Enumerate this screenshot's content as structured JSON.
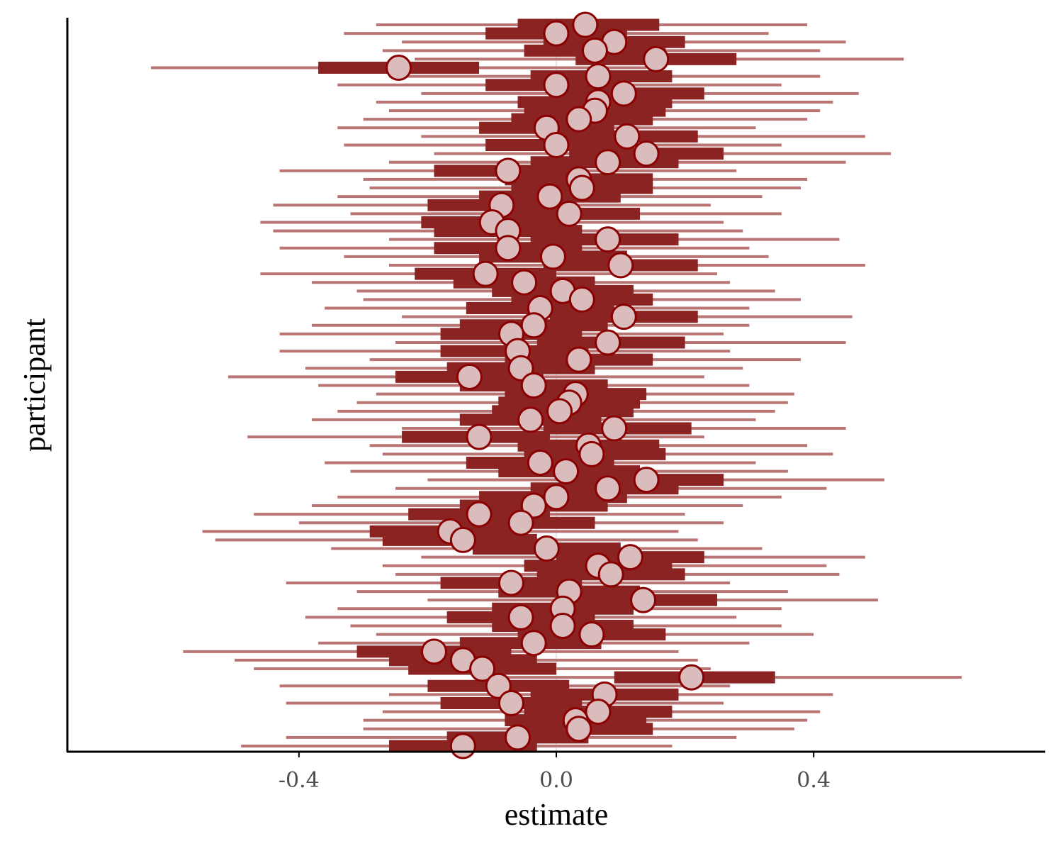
{
  "chart_data": {
    "type": "forest",
    "xlabel": "estimate",
    "ylabel": "participant",
    "xlim": [
      -0.76,
      0.76
    ],
    "xticks": [
      -0.4,
      0.0,
      0.4
    ],
    "xtick_labels": [
      "-0.4",
      "0.0",
      "0.4"
    ],
    "reference_line": 0,
    "grid": false,
    "colors": {
      "interval_inner": "#8b2323",
      "interval_outer": "#b97474",
      "point_fill": "#dbbcbc",
      "point_stroke": "#8b0000",
      "axis": "#000000",
      "reference_line": "#e6e6e6"
    },
    "rows": [
      {
        "est": 0.045,
        "lo50": -0.06,
        "hi50": 0.16,
        "lo95": -0.28,
        "hi95": 0.39
      },
      {
        "est": 0.0,
        "lo50": -0.11,
        "hi50": 0.11,
        "lo95": -0.33,
        "hi95": 0.33
      },
      {
        "est": 0.09,
        "lo50": -0.02,
        "hi50": 0.2,
        "lo95": -0.24,
        "hi95": 0.45
      },
      {
        "est": 0.06,
        "lo50": -0.05,
        "hi50": 0.17,
        "lo95": -0.27,
        "hi95": 0.41
      },
      {
        "est": 0.155,
        "lo50": 0.03,
        "hi50": 0.28,
        "lo95": -0.22,
        "hi95": 0.54
      },
      {
        "est": -0.245,
        "lo50": -0.37,
        "hi50": -0.12,
        "lo95": -0.63,
        "hi95": 0.14
      },
      {
        "est": 0.065,
        "lo50": -0.04,
        "hi50": 0.18,
        "lo95": -0.26,
        "hi95": 0.41
      },
      {
        "est": 0.0,
        "lo50": -0.11,
        "hi50": 0.11,
        "lo95": -0.34,
        "hi95": 0.35
      },
      {
        "est": 0.105,
        "lo50": -0.01,
        "hi50": 0.23,
        "lo95": -0.21,
        "hi95": 0.47
      },
      {
        "est": 0.065,
        "lo50": -0.06,
        "hi50": 0.18,
        "lo95": -0.28,
        "hi95": 0.43
      },
      {
        "est": 0.06,
        "lo50": -0.05,
        "hi50": 0.17,
        "lo95": -0.26,
        "hi95": 0.41
      },
      {
        "est": 0.035,
        "lo50": -0.07,
        "hi50": 0.15,
        "lo95": -0.3,
        "hi95": 0.39
      },
      {
        "est": -0.015,
        "lo50": -0.12,
        "hi50": 0.09,
        "lo95": -0.34,
        "hi95": 0.31
      },
      {
        "est": 0.11,
        "lo50": 0.0,
        "hi50": 0.22,
        "lo95": -0.21,
        "hi95": 0.48
      },
      {
        "est": 0.0,
        "lo50": -0.11,
        "hi50": 0.11,
        "lo95": -0.33,
        "hi95": 0.35
      },
      {
        "est": 0.14,
        "lo50": 0.02,
        "hi50": 0.26,
        "lo95": -0.19,
        "hi95": 0.52
      },
      {
        "est": 0.08,
        "lo50": -0.04,
        "hi50": 0.19,
        "lo95": -0.26,
        "hi95": 0.45
      },
      {
        "est": -0.075,
        "lo50": -0.19,
        "hi50": 0.04,
        "lo95": -0.43,
        "hi95": 0.28
      },
      {
        "est": 0.035,
        "lo50": -0.08,
        "hi50": 0.15,
        "lo95": -0.3,
        "hi95": 0.39
      },
      {
        "est": 0.04,
        "lo50": -0.07,
        "hi50": 0.15,
        "lo95": -0.29,
        "hi95": 0.38
      },
      {
        "est": -0.01,
        "lo50": -0.12,
        "hi50": 0.1,
        "lo95": -0.34,
        "hi95": 0.32
      },
      {
        "est": -0.085,
        "lo50": -0.2,
        "hi50": 0.03,
        "lo95": -0.44,
        "hi95": 0.24
      },
      {
        "est": 0.02,
        "lo50": -0.1,
        "hi50": 0.13,
        "lo95": -0.32,
        "hi95": 0.35
      },
      {
        "est": -0.1,
        "lo50": -0.21,
        "hi50": 0.02,
        "lo95": -0.46,
        "hi95": 0.26
      },
      {
        "est": -0.075,
        "lo50": -0.19,
        "hi50": 0.04,
        "lo95": -0.44,
        "hi95": 0.29
      },
      {
        "est": 0.08,
        "lo50": -0.04,
        "hi50": 0.19,
        "lo95": -0.26,
        "hi95": 0.44
      },
      {
        "est": -0.075,
        "lo50": -0.19,
        "hi50": 0.04,
        "lo95": -0.43,
        "hi95": 0.3
      },
      {
        "est": -0.005,
        "lo50": -0.12,
        "hi50": 0.11,
        "lo95": -0.33,
        "hi95": 0.33
      },
      {
        "est": 0.1,
        "lo50": -0.02,
        "hi50": 0.22,
        "lo95": -0.26,
        "hi95": 0.48
      },
      {
        "est": -0.11,
        "lo50": -0.22,
        "hi50": 0.0,
        "lo95": -0.46,
        "hi95": 0.25
      },
      {
        "est": -0.05,
        "lo50": -0.16,
        "hi50": 0.06,
        "lo95": -0.38,
        "hi95": 0.27
      },
      {
        "est": 0.01,
        "lo50": -0.1,
        "hi50": 0.12,
        "lo95": -0.31,
        "hi95": 0.34
      },
      {
        "est": 0.04,
        "lo50": -0.07,
        "hi50": 0.15,
        "lo95": -0.3,
        "hi95": 0.38
      },
      {
        "est": -0.025,
        "lo50": -0.14,
        "hi50": 0.09,
        "lo95": -0.36,
        "hi95": 0.3
      },
      {
        "est": 0.105,
        "lo50": -0.01,
        "hi50": 0.22,
        "lo95": -0.24,
        "hi95": 0.46
      },
      {
        "est": -0.035,
        "lo50": -0.15,
        "hi50": 0.08,
        "lo95": -0.38,
        "hi95": 0.3
      },
      {
        "est": -0.07,
        "lo50": -0.18,
        "hi50": 0.04,
        "lo95": -0.43,
        "hi95": 0.26
      },
      {
        "est": 0.08,
        "lo50": -0.03,
        "hi50": 0.2,
        "lo95": -0.25,
        "hi95": 0.45
      },
      {
        "est": -0.06,
        "lo50": -0.18,
        "hi50": 0.05,
        "lo95": -0.43,
        "hi95": 0.27
      },
      {
        "est": 0.035,
        "lo50": -0.08,
        "hi50": 0.15,
        "lo95": -0.29,
        "hi95": 0.38
      },
      {
        "est": -0.055,
        "lo50": -0.17,
        "hi50": 0.06,
        "lo95": -0.39,
        "hi95": 0.29
      },
      {
        "est": -0.135,
        "lo50": -0.25,
        "hi50": -0.02,
        "lo95": -0.51,
        "hi95": 0.23
      },
      {
        "est": -0.035,
        "lo50": -0.15,
        "hi50": 0.08,
        "lo95": -0.37,
        "hi95": 0.3
      },
      {
        "est": 0.03,
        "lo50": -0.08,
        "hi50": 0.14,
        "lo95": -0.28,
        "hi95": 0.37
      },
      {
        "est": 0.02,
        "lo50": -0.09,
        "hi50": 0.13,
        "lo95": -0.31,
        "hi95": 0.36
      },
      {
        "est": 0.005,
        "lo50": -0.1,
        "hi50": 0.12,
        "lo95": -0.34,
        "hi95": 0.34
      },
      {
        "est": -0.04,
        "lo50": -0.15,
        "hi50": 0.07,
        "lo95": -0.38,
        "hi95": 0.31
      },
      {
        "est": 0.09,
        "lo50": -0.02,
        "hi50": 0.21,
        "lo95": -0.24,
        "hi95": 0.45
      },
      {
        "est": -0.12,
        "lo50": -0.24,
        "hi50": -0.01,
        "lo95": -0.48,
        "hi95": 0.23
      },
      {
        "est": 0.05,
        "lo50": -0.06,
        "hi50": 0.16,
        "lo95": -0.29,
        "hi95": 0.39
      },
      {
        "est": 0.055,
        "lo50": -0.05,
        "hi50": 0.17,
        "lo95": -0.27,
        "hi95": 0.43
      },
      {
        "est": -0.025,
        "lo50": -0.14,
        "hi50": 0.09,
        "lo95": -0.36,
        "hi95": 0.31
      },
      {
        "est": 0.015,
        "lo50": -0.09,
        "hi50": 0.13,
        "lo95": -0.32,
        "hi95": 0.36
      },
      {
        "est": 0.14,
        "lo50": 0.02,
        "hi50": 0.26,
        "lo95": -0.2,
        "hi95": 0.51
      },
      {
        "est": 0.08,
        "lo50": -0.04,
        "hi50": 0.19,
        "lo95": -0.25,
        "hi95": 0.42
      },
      {
        "est": 0.0,
        "lo50": -0.12,
        "hi50": 0.11,
        "lo95": -0.34,
        "hi95": 0.35
      },
      {
        "est": -0.035,
        "lo50": -0.15,
        "hi50": 0.08,
        "lo95": -0.38,
        "hi95": 0.29
      },
      {
        "est": -0.12,
        "lo50": -0.23,
        "hi50": -0.01,
        "lo95": -0.47,
        "hi95": 0.2
      },
      {
        "est": -0.055,
        "lo50": -0.17,
        "hi50": 0.06,
        "lo95": -0.4,
        "hi95": 0.26
      },
      {
        "est": -0.165,
        "lo50": -0.29,
        "hi50": -0.05,
        "lo95": -0.55,
        "hi95": 0.19
      },
      {
        "est": -0.145,
        "lo50": -0.27,
        "hi50": -0.03,
        "lo95": -0.53,
        "hi95": 0.22
      },
      {
        "est": -0.015,
        "lo50": -0.13,
        "hi50": 0.1,
        "lo95": -0.35,
        "hi95": 0.32
      },
      {
        "est": 0.115,
        "lo50": 0.0,
        "hi50": 0.23,
        "lo95": -0.21,
        "hi95": 0.48
      },
      {
        "est": 0.065,
        "lo50": -0.05,
        "hi50": 0.18,
        "lo95": -0.27,
        "hi95": 0.42
      },
      {
        "est": 0.085,
        "lo50": -0.03,
        "hi50": 0.2,
        "lo95": -0.25,
        "hi95": 0.44
      },
      {
        "est": -0.07,
        "lo50": -0.18,
        "hi50": 0.04,
        "lo95": -0.42,
        "hi95": 0.27
      },
      {
        "est": 0.02,
        "lo50": -0.09,
        "hi50": 0.13,
        "lo95": -0.31,
        "hi95": 0.36
      },
      {
        "est": 0.135,
        "lo50": 0.02,
        "hi50": 0.25,
        "lo95": -0.2,
        "hi95": 0.5
      },
      {
        "est": 0.01,
        "lo50": -0.1,
        "hi50": 0.12,
        "lo95": -0.34,
        "hi95": 0.35
      },
      {
        "est": -0.055,
        "lo50": -0.17,
        "hi50": 0.06,
        "lo95": -0.39,
        "hi95": 0.28
      },
      {
        "est": 0.01,
        "lo50": -0.1,
        "hi50": 0.12,
        "lo95": -0.32,
        "hi95": 0.35
      },
      {
        "est": 0.055,
        "lo50": -0.06,
        "hi50": 0.17,
        "lo95": -0.28,
        "hi95": 0.4
      },
      {
        "est": -0.035,
        "lo50": -0.15,
        "hi50": 0.07,
        "lo95": -0.37,
        "hi95": 0.3
      },
      {
        "est": -0.19,
        "lo50": -0.31,
        "hi50": -0.07,
        "lo95": -0.58,
        "hi95": 0.19
      },
      {
        "est": -0.145,
        "lo50": -0.26,
        "hi50": -0.03,
        "lo95": -0.5,
        "hi95": 0.22
      },
      {
        "est": -0.115,
        "lo50": -0.23,
        "hi50": 0.0,
        "lo95": -0.47,
        "hi95": 0.24
      },
      {
        "est": 0.21,
        "lo50": 0.09,
        "hi50": 0.34,
        "lo95": -0.11,
        "hi95": 0.63
      },
      {
        "est": -0.09,
        "lo50": -0.2,
        "hi50": 0.02,
        "lo95": -0.43,
        "hi95": 0.27
      },
      {
        "est": 0.075,
        "lo50": -0.04,
        "hi50": 0.19,
        "lo95": -0.26,
        "hi95": 0.43
      },
      {
        "est": -0.07,
        "lo50": -0.18,
        "hi50": 0.04,
        "lo95": -0.42,
        "hi95": 0.26
      },
      {
        "est": 0.065,
        "lo50": -0.05,
        "hi50": 0.18,
        "lo95": -0.27,
        "hi95": 0.41
      },
      {
        "est": 0.03,
        "lo50": -0.08,
        "hi50": 0.14,
        "lo95": -0.3,
        "hi95": 0.39
      },
      {
        "est": 0.035,
        "lo50": -0.07,
        "hi50": 0.15,
        "lo95": -0.3,
        "hi95": 0.37
      },
      {
        "est": -0.06,
        "lo50": -0.17,
        "hi50": 0.05,
        "lo95": -0.42,
        "hi95": 0.28
      },
      {
        "est": -0.145,
        "lo50": -0.26,
        "hi50": -0.03,
        "lo95": -0.49,
        "hi95": 0.18
      }
    ]
  }
}
